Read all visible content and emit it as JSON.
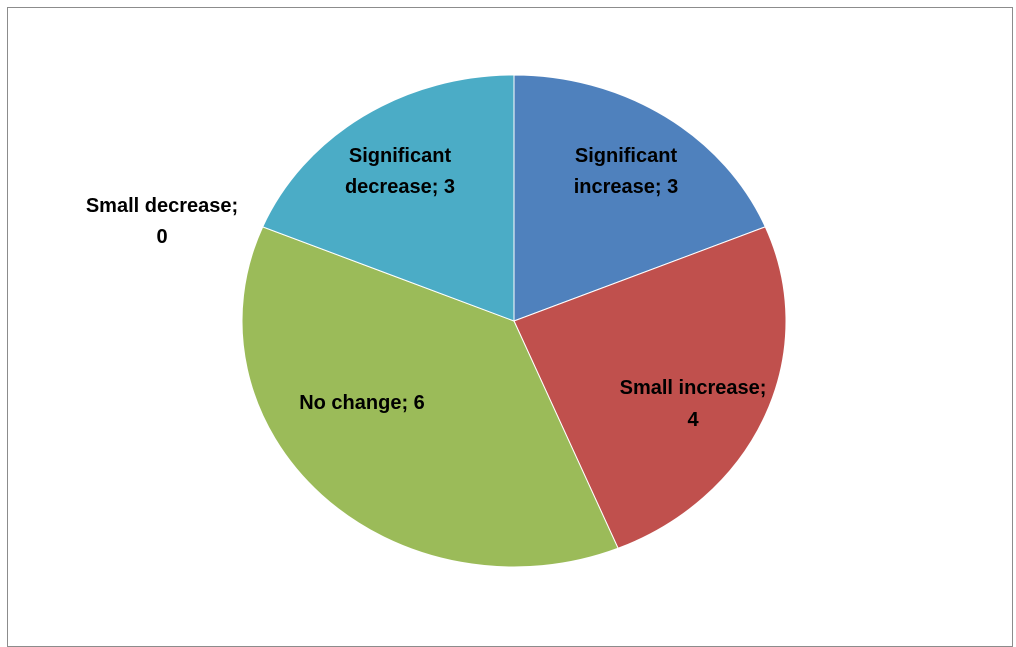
{
  "chart_data": {
    "type": "pie",
    "title": "",
    "categories": [
      "Significant increase",
      "Small increase",
      "No change",
      "Small decrease",
      "Significant decrease"
    ],
    "values": [
      3,
      4,
      6,
      0,
      3
    ],
    "colors": [
      "#4f81bd",
      "#c0504d",
      "#9bbb59",
      "#8064a2",
      "#4bacc6"
    ],
    "data_labels": [
      [
        "Significant",
        "increase; 3"
      ],
      [
        "Small increase;",
        "4"
      ],
      [
        "No change; 6"
      ],
      [
        "Small decrease;",
        "0"
      ],
      [
        "Significant",
        "decrease; 3"
      ]
    ],
    "legend": "none",
    "start_angle": "12 o'clock",
    "direction": "clockwise"
  }
}
